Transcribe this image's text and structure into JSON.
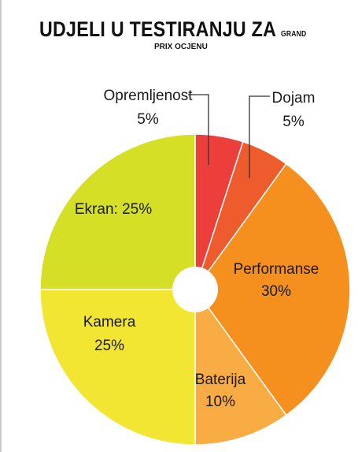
{
  "header": {
    "title_main": "UDJELI U TESTIRANJU ZA",
    "title_tail": "GRAND",
    "subtitle": "PRIX OCJENU"
  },
  "chart_data": {
    "type": "pie",
    "title": "UDJELI U TESTIRANJU ZA GRAND PRIX OCJENU",
    "slices": [
      {
        "label": "Opremljenost",
        "value": 5,
        "text": "5%",
        "color": "#ec3f3c",
        "line1": "Opremljenost",
        "line2": "5%",
        "placement": "outside-left"
      },
      {
        "label": "Dojam",
        "value": 5,
        "text": "5%",
        "color": "#ee5c2d",
        "line1": "Dojam",
        "line2": "5%",
        "placement": "outside-right"
      },
      {
        "label": "Performanse",
        "value": 30,
        "text": "30%",
        "color": "#f5901f",
        "line1": "Performanse",
        "line2": "30%",
        "placement": "inside"
      },
      {
        "label": "Baterija",
        "value": 10,
        "text": "10%",
        "color": "#f9ac43",
        "line1": "Baterija",
        "line2": "10%",
        "placement": "inside"
      },
      {
        "label": "Kamera",
        "value": 25,
        "text": "25%",
        "color": "#f2e633",
        "line1": "Kamera",
        "line2": "25%",
        "placement": "inside"
      },
      {
        "label": "Ekran",
        "value": 25,
        "text": "25%",
        "color": "#d4df26",
        "line1": "Ekran: 25%",
        "line2": "",
        "placement": "inside"
      }
    ],
    "start_angle_deg": 0,
    "direction": "clockwise",
    "center_hole": true
  }
}
